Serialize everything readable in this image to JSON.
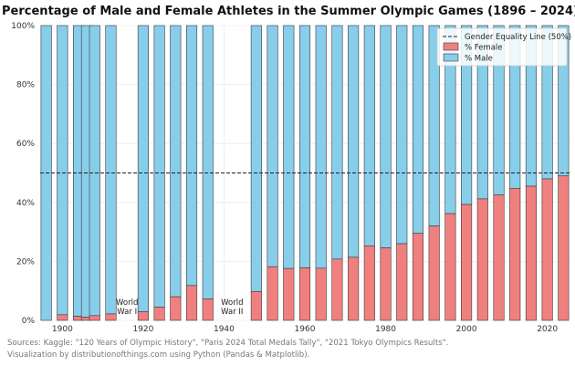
{
  "chart_data": {
    "type": "bar",
    "stacked": true,
    "title": "Percentage of Male and Female Athletes in the Summer Olympic Games (1896 – 2024)",
    "xlabel": "",
    "ylabel": "",
    "ylim": [
      0,
      100
    ],
    "xlim": [
      1894.5,
      2025.5
    ],
    "grid": true,
    "legend_position": "top-right",
    "x_ticks": [
      "1900",
      "1920",
      "1940",
      "1960",
      "1980",
      "2000",
      "2020"
    ],
    "y_ticks": [
      "0%",
      "20%",
      "40%",
      "60%",
      "80%",
      "100%"
    ],
    "years": [
      1896,
      1900,
      1904,
      1906,
      1908,
      1912,
      1920,
      1924,
      1928,
      1932,
      1936,
      1948,
      1952,
      1956,
      1960,
      1964,
      1968,
      1972,
      1976,
      1980,
      1984,
      1988,
      1992,
      1996,
      2000,
      2004,
      2008,
      2012,
      2016,
      2020,
      2024
    ],
    "series": [
      {
        "name": "% Female",
        "color": "#f08080",
        "values": [
          0.0,
          1.9,
          1.4,
          1.1,
          1.6,
          2.2,
          2.9,
          4.5,
          8.0,
          11.8,
          7.3,
          9.8,
          18.2,
          17.6,
          17.8,
          17.7,
          20.8,
          21.4,
          25.3,
          24.6,
          26.0,
          29.5,
          32.0,
          36.2,
          39.3,
          41.2,
          42.6,
          44.8,
          45.5,
          48.0,
          49.0
        ]
      },
      {
        "name": "% Male",
        "color": "#87ceeb",
        "values": [
          100.0,
          98.1,
          98.6,
          98.9,
          98.4,
          97.8,
          97.1,
          95.5,
          92.0,
          88.2,
          92.7,
          90.2,
          81.8,
          82.4,
          82.2,
          82.3,
          79.2,
          78.6,
          74.7,
          75.4,
          74.0,
          70.5,
          68.0,
          63.8,
          60.7,
          58.8,
          57.4,
          55.2,
          54.5,
          52.0,
          51.0
        ]
      }
    ],
    "reference_line": {
      "label": "Gender Equality Line (50%)",
      "value": 50
    },
    "annotations": [
      {
        "label": "World War I",
        "lines": [
          "World",
          "War I"
        ],
        "year": 1916
      },
      {
        "label": "World War II",
        "lines": [
          "World",
          "War II"
        ],
        "year": 1942
      }
    ]
  },
  "footer": {
    "sources": "Sources: Kaggle: \"120 Years of Olympic History\", \"Paris 2024 Total Medals Tally\", \"2021 Tokyo Olympics Results\".",
    "credit": "Visualization by distributionofthings.com using Python (Pandas & Matplotlib)."
  }
}
